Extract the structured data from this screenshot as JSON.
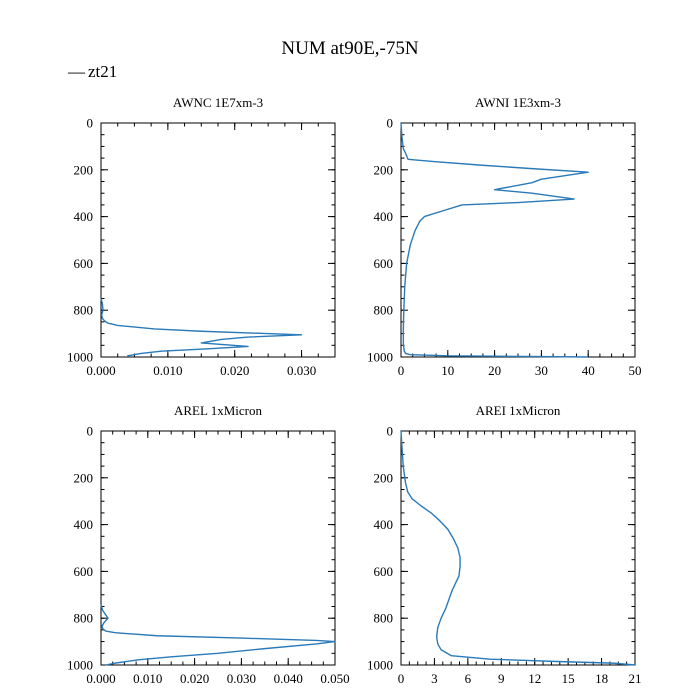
{
  "title": "NUM at90E,-75N",
  "legend": {
    "label": "zt21",
    "marker": "—",
    "color": "#2a7ab8"
  },
  "colors": {
    "line": "#2a7ab8",
    "axis": "#000000"
  },
  "chart_data": [
    {
      "type": "line",
      "title": "AWNC  1E7xm-3",
      "xlim": [
        0,
        0.035
      ],
      "ylim": [
        1000,
        0
      ],
      "xticks": [
        "0.000",
        "0.010",
        "0.020",
        "0.030"
      ],
      "yticks": [
        "0",
        "200",
        "400",
        "600",
        "800",
        "1000"
      ],
      "series": [
        {
          "name": "zt21",
          "x": [
            0,
            0.0002,
            0.0003,
            0.0001,
            0.0002,
            0.0005,
            0.001,
            0.0025,
            0.008,
            0.015,
            0.03,
            0.022,
            0.018,
            0.015,
            0.022,
            0.016,
            0.009,
            0.006,
            0.004,
            0.004
          ],
          "y": [
            750,
            770,
            800,
            820,
            835,
            845,
            855,
            865,
            880,
            890,
            905,
            915,
            925,
            940,
            955,
            965,
            975,
            985,
            995,
            1000
          ]
        }
      ]
    },
    {
      "type": "line",
      "title": "AWNI  1E3xm-3",
      "xlim": [
        0,
        50
      ],
      "ylim": [
        1000,
        0
      ],
      "xticks": [
        "0",
        "10",
        "20",
        "30",
        "40",
        "50"
      ],
      "yticks": [
        "0",
        "200",
        "400",
        "600",
        "800",
        "1000"
      ],
      "series": [
        {
          "name": "zt21",
          "x": [
            0,
            0.2,
            0.5,
            1,
            1.5,
            7,
            17,
            28,
            40,
            30,
            28,
            20,
            28,
            37,
            25,
            13,
            9,
            5,
            4,
            3,
            2,
            1.2,
            0.8,
            0.6,
            0.5,
            0.5,
            0.6,
            0.7,
            1,
            2,
            10,
            30,
            40
          ],
          "y": [
            0,
            60,
            110,
            130,
            155,
            165,
            180,
            195,
            210,
            240,
            255,
            285,
            300,
            325,
            340,
            350,
            375,
            400,
            420,
            460,
            520,
            600,
            700,
            800,
            880,
            940,
            960,
            975,
            985,
            990,
            995,
            998,
            1000
          ]
        }
      ]
    },
    {
      "type": "line",
      "title": "AREL  1xMicron",
      "xlim": [
        0,
        0.05
      ],
      "ylim": [
        1000,
        0
      ],
      "xticks": [
        "0.000",
        "0.010",
        "0.020",
        "0.030",
        "0.040",
        "0.050"
      ],
      "yticks": [
        "0",
        "200",
        "400",
        "600",
        "800",
        "1000"
      ],
      "series": [
        {
          "name": "zt21",
          "x": [
            0,
            0.0003,
            0.0015,
            0.0006,
            0.0002,
            0.0004,
            0.001,
            0.003,
            0.012,
            0.03,
            0.046,
            0.05,
            0.046,
            0.035,
            0.025,
            0.015,
            0.008,
            0.003,
            0.001
          ],
          "y": [
            740,
            765,
            800,
            820,
            835,
            845,
            855,
            862,
            875,
            885,
            895,
            900,
            910,
            930,
            950,
            965,
            978,
            992,
            1000
          ]
        }
      ]
    },
    {
      "type": "line",
      "title": "AREI  1xMicron",
      "xlim": [
        0,
        21
      ],
      "ylim": [
        1000,
        0
      ],
      "xticks": [
        "0",
        "3",
        "6",
        "9",
        "12",
        "15",
        "18",
        "21"
      ],
      "yticks": [
        "0",
        "200",
        "400",
        "600",
        "800",
        "1000"
      ],
      "series": [
        {
          "name": "zt21",
          "x": [
            0,
            0.1,
            0.2,
            0.4,
            0.6,
            1,
            1.8,
            2.7,
            3.4,
            4.2,
            4.7,
            5.1,
            5.3,
            5.3,
            5.2,
            4.9,
            4.6,
            4.3,
            4.0,
            3.6,
            3.3,
            3.2,
            3.3,
            3.6,
            4.5,
            8,
            14,
            19,
            21
          ],
          "y": [
            0,
            80,
            150,
            220,
            260,
            290,
            320,
            350,
            380,
            420,
            460,
            500,
            540,
            580,
            620,
            650,
            680,
            720,
            760,
            800,
            840,
            880,
            910,
            935,
            960,
            975,
            985,
            992,
            1000
          ]
        }
      ]
    }
  ]
}
